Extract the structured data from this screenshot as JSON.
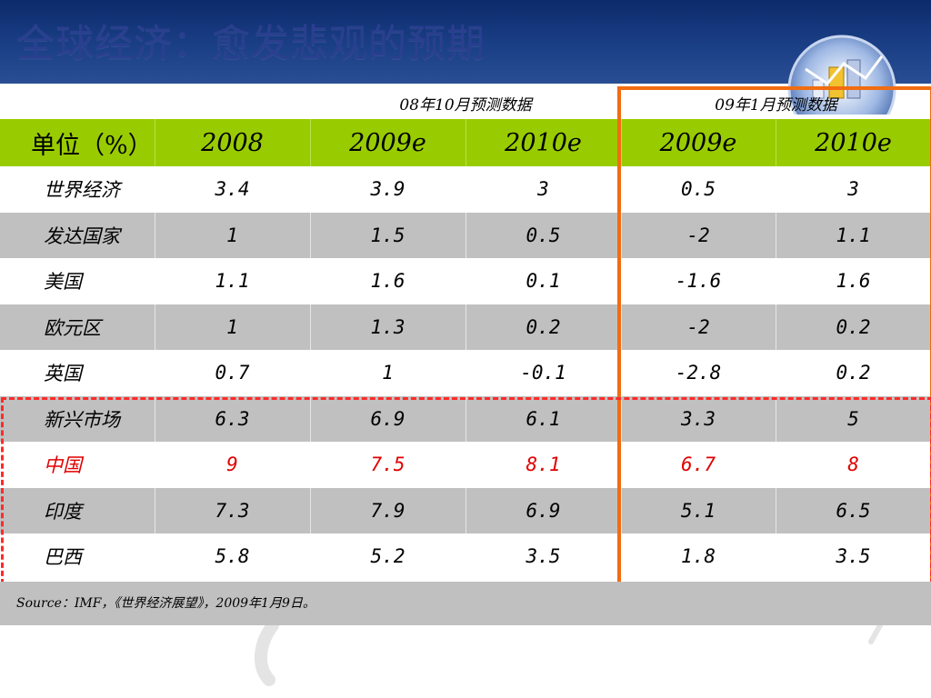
{
  "title": "全球经济：愈发悲观的预期",
  "groups": {
    "oct08": "08年10月预测数据",
    "jan09": "09年1月预测数据"
  },
  "header": [
    "单位（%）",
    "2008",
    "2009e",
    "2010e",
    "2009e",
    "2010e"
  ],
  "rows": [
    {
      "name": "世界经济",
      "v": [
        "3.4",
        "3.9",
        "3",
        "0.5",
        "3"
      ]
    },
    {
      "name": "发达国家",
      "v": [
        "1",
        "1.5",
        "0.5",
        "-2",
        "1.1"
      ]
    },
    {
      "name": "美国",
      "v": [
        "1.1",
        "1.6",
        "0.1",
        "-1.6",
        "1.6"
      ]
    },
    {
      "name": "欧元区",
      "v": [
        "1",
        "1.3",
        "0.2",
        "-2",
        "0.2"
      ]
    },
    {
      "name": "英国",
      "v": [
        "0.7",
        "1",
        "-0.1",
        "-2.8",
        "0.2"
      ]
    },
    {
      "name": "新兴市场",
      "v": [
        "6.3",
        "6.9",
        "6.1",
        "3.3",
        "5"
      ]
    },
    {
      "name": "中国",
      "v": [
        "9",
        "7.5",
        "8.1",
        "6.7",
        "8"
      ]
    },
    {
      "name": "印度",
      "v": [
        "7.3",
        "7.9",
        "6.9",
        "5.1",
        "6.5"
      ]
    },
    {
      "name": "巴西",
      "v": [
        "5.8",
        "5.2",
        "3.5",
        "1.8",
        "3.5"
      ]
    }
  ],
  "source": "Source：IMF，《世界经济展望》，2009年1月9日。",
  "colors": {
    "header_band": "#1b3f86",
    "column_header_bg": "#99cc00",
    "row_alt_bg": "#c0c0c0",
    "highlight_text": "#e00000",
    "orange_box": "#f26c10",
    "red_dashed_box": "#ff2a2a"
  },
  "chart_data": {
    "type": "table",
    "title": "全球经济：愈发悲观的预期",
    "column_groups": [
      {
        "label": "08年10月预测数据",
        "columns": [
          "2009e",
          "2010e"
        ]
      },
      {
        "label": "09年1月预测数据",
        "columns": [
          "2009e",
          "2010e"
        ]
      }
    ],
    "columns": [
      "单位（%）",
      "2008",
      "2009e",
      "2010e",
      "2009e",
      "2010e"
    ],
    "rows": [
      [
        "世界经济",
        3.4,
        3.9,
        3,
        0.5,
        3
      ],
      [
        "发达国家",
        1,
        1.5,
        0.5,
        -2,
        1.1
      ],
      [
        "美国",
        1.1,
        1.6,
        0.1,
        -1.6,
        1.6
      ],
      [
        "欧元区",
        1,
        1.3,
        0.2,
        -2,
        0.2
      ],
      [
        "英国",
        0.7,
        1,
        -0.1,
        -2.8,
        0.2
      ],
      [
        "新兴市场",
        6.3,
        6.9,
        6.1,
        3.3,
        5
      ],
      [
        "中国",
        9,
        7.5,
        8.1,
        6.7,
        8
      ],
      [
        "印度",
        7.3,
        7.9,
        6.9,
        5.1,
        6.5
      ],
      [
        "巴西",
        5.8,
        5.2,
        3.5,
        1.8,
        3.5
      ]
    ],
    "highlighted_row": "中国",
    "highlighted_groups": [
      "09年1月预测数据",
      "新兴市场-巴西"
    ]
  }
}
